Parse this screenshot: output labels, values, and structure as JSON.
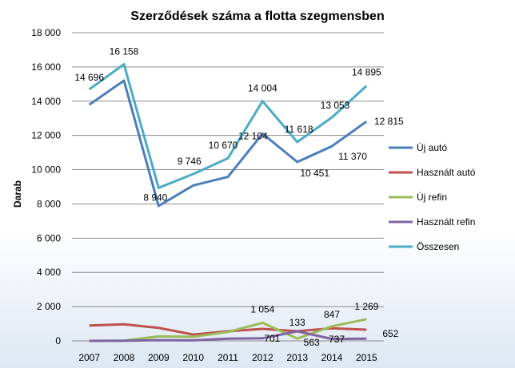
{
  "chart_data": {
    "type": "line",
    "title": "Szerződések száma a flotta szegmensben",
    "xlabel": "",
    "ylabel": "Darab",
    "ylim": [
      0,
      18000
    ],
    "yticks": [
      0,
      2000,
      4000,
      6000,
      8000,
      10000,
      12000,
      14000,
      16000,
      18000
    ],
    "ytick_labels": [
      "0",
      "2 000",
      "4 000",
      "6 000",
      "8 000",
      "10 000",
      "12 000",
      "14 000",
      "16 000",
      "18 000"
    ],
    "categories": [
      "2007",
      "2008",
      "2009",
      "2010",
      "2011",
      "2012",
      "2013",
      "2014",
      "2015"
    ],
    "grid": "horizontal",
    "legend_position": "right",
    "series": [
      {
        "name": "Új autó",
        "color": "#4a7ebb",
        "values": [
          13800,
          15200,
          7880,
          9080,
          9580,
          12104,
          10451,
          11370,
          12815
        ]
      },
      {
        "name": "Használt autó",
        "color": "#c0504d",
        "values": [
          896,
          970,
          760,
          370,
          560,
          701,
          563,
          737,
          652
        ]
      },
      {
        "name": "Új refin",
        "color": "#9bbb59",
        "values": [
          0,
          10,
          260,
          240,
          520,
          1054,
          133,
          847,
          1269
        ]
      },
      {
        "name": "Használt refin",
        "color": "#8064a2",
        "values": [
          0,
          5,
          40,
          30,
          130,
          150,
          560,
          110,
          130
        ]
      },
      {
        "name": "Összesen",
        "color": "#4bacc6",
        "values": [
          14696,
          16158,
          8940,
          9746,
          10670,
          14004,
          11618,
          13053,
          14895
        ]
      }
    ],
    "data_labels": [
      {
        "series": 4,
        "index": 0,
        "text": "14 696"
      },
      {
        "series": 4,
        "index": 1,
        "text": "16 158"
      },
      {
        "series": 4,
        "index": 2,
        "text": "8 940"
      },
      {
        "series": 4,
        "index": 3,
        "text": "9 746"
      },
      {
        "series": 4,
        "index": 4,
        "text": "10 670"
      },
      {
        "series": 4,
        "index": 5,
        "text": "14 004"
      },
      {
        "series": 4,
        "index": 6,
        "text": "11 618"
      },
      {
        "series": 4,
        "index": 7,
        "text": "13 053"
      },
      {
        "series": 4,
        "index": 8,
        "text": "14 895"
      },
      {
        "series": 0,
        "index": 5,
        "text": "12 104"
      },
      {
        "series": 0,
        "index": 6,
        "text": "10 451"
      },
      {
        "series": 0,
        "index": 7,
        "text": "11 370"
      },
      {
        "series": 0,
        "index": 8,
        "text": "12 815"
      },
      {
        "series": 2,
        "index": 5,
        "text": "1 054"
      },
      {
        "series": 1,
        "index": 5,
        "text": "701"
      },
      {
        "series": 2,
        "index": 6,
        "text": "133"
      },
      {
        "series": 1,
        "index": 6,
        "text": "563"
      },
      {
        "series": 2,
        "index": 7,
        "text": "847"
      },
      {
        "series": 1,
        "index": 7,
        "text": "737"
      },
      {
        "series": 2,
        "index": 8,
        "text": "1 269"
      },
      {
        "series": 1,
        "index": 8,
        "text": "652"
      }
    ]
  }
}
